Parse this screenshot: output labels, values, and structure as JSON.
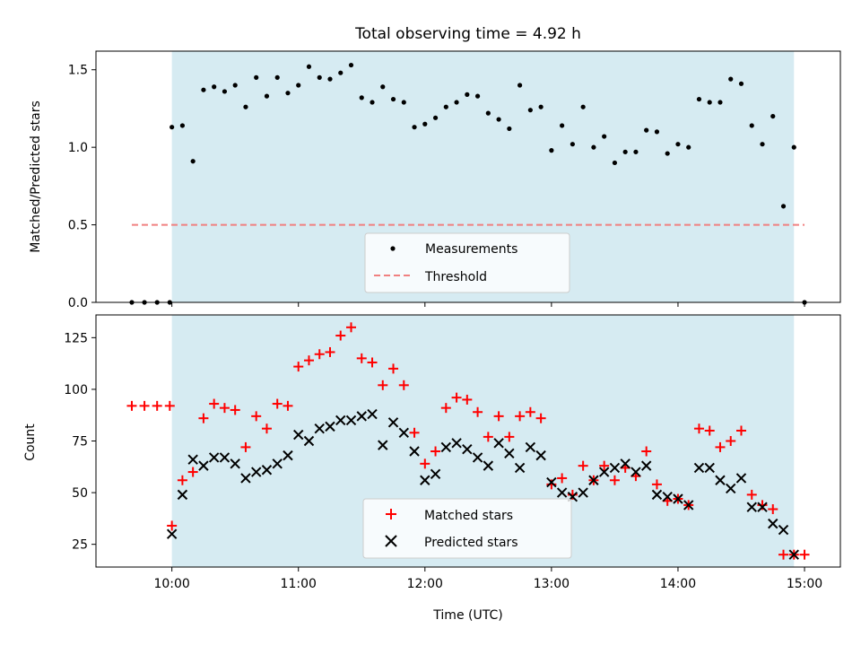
{
  "chart_data": [
    {
      "type": "scatter",
      "title": "Total observing time = 4.92 h",
      "xlabel": "",
      "ylabel": "Matched/Predicted stars",
      "xlim": [
        "09:24",
        "15:17"
      ],
      "ylim": [
        0,
        1.62
      ],
      "yticks": [
        0.0,
        0.5,
        1.0,
        1.5
      ],
      "ytick_labels": [
        "0.0",
        "0.5",
        "1.0",
        "1.5"
      ],
      "shaded_span": {
        "start": "10:00",
        "end": "14:55",
        "color": "#add8e6"
      },
      "legend": {
        "placement": "lower center",
        "entries": [
          "Measurements",
          "Threshold"
        ]
      },
      "series": [
        {
          "name": "Measurements",
          "marker": "dot",
          "color": "#000000",
          "x": [
            "09:41",
            "09:47",
            "09:53",
            "09:59",
            "10:00",
            "10:05",
            "10:10",
            "10:15",
            "10:20",
            "10:25",
            "10:30",
            "10:35",
            "10:40",
            "10:45",
            "10:50",
            "10:55",
            "11:00",
            "11:05",
            "11:10",
            "11:15",
            "11:20",
            "11:25",
            "11:30",
            "11:35",
            "11:40",
            "11:45",
            "11:50",
            "11:55",
            "12:00",
            "12:05",
            "12:10",
            "12:15",
            "12:20",
            "12:25",
            "12:30",
            "12:35",
            "12:40",
            "12:45",
            "12:50",
            "12:55",
            "13:00",
            "13:05",
            "13:10",
            "13:15",
            "13:20",
            "13:25",
            "13:30",
            "13:35",
            "13:40",
            "13:45",
            "13:50",
            "13:55",
            "14:00",
            "14:05",
            "14:10",
            "14:15",
            "14:20",
            "14:25",
            "14:30",
            "14:35",
            "14:40",
            "14:45",
            "14:50",
            "14:55",
            "15:00"
          ],
          "y": [
            0.0,
            0.0,
            0.0,
            0.0,
            1.13,
            1.14,
            0.91,
            1.37,
            1.39,
            1.36,
            1.4,
            1.26,
            1.45,
            1.33,
            1.45,
            1.35,
            1.4,
            1.52,
            1.45,
            1.44,
            1.48,
            1.53,
            1.32,
            1.29,
            1.39,
            1.31,
            1.29,
            1.13,
            1.15,
            1.19,
            1.26,
            1.29,
            1.34,
            1.33,
            1.22,
            1.18,
            1.12,
            1.4,
            1.24,
            1.26,
            0.98,
            1.14,
            1.02,
            1.26,
            1.0,
            1.07,
            0.9,
            0.97,
            0.97,
            1.11,
            1.1,
            0.96,
            1.02,
            1.0,
            1.31,
            1.29,
            1.29,
            1.44,
            1.41,
            1.14,
            1.02,
            1.2,
            0.62,
            1.0,
            0.0
          ]
        },
        {
          "name": "Threshold",
          "marker": "dashed-line",
          "color": "#f08080",
          "x": [
            "09:41",
            "15:00"
          ],
          "y": [
            0.5,
            0.5
          ]
        }
      ]
    },
    {
      "type": "scatter",
      "title": "",
      "xlabel": "Time (UTC)",
      "ylabel": "Count",
      "xlim": [
        "09:24",
        "15:17"
      ],
      "ylim": [
        14,
        136
      ],
      "xticks": [
        "10:00",
        "11:00",
        "12:00",
        "13:00",
        "14:00",
        "15:00"
      ],
      "xtick_labels": [
        "10:00",
        "11:00",
        "12:00",
        "13:00",
        "14:00",
        "15:00"
      ],
      "yticks": [
        25,
        50,
        75,
        100,
        125
      ],
      "ytick_labels": [
        "25",
        "50",
        "75",
        "100",
        "125"
      ],
      "shaded_span": {
        "start": "10:00",
        "end": "14:55",
        "color": "#add8e6"
      },
      "legend": {
        "placement": "lower center",
        "entries": [
          "Matched stars",
          "Predicted stars"
        ]
      },
      "series": [
        {
          "name": "Matched stars",
          "marker": "plus",
          "color": "#ff0000",
          "x": [
            "09:41",
            "09:47",
            "09:53",
            "09:59",
            "10:00",
            "10:05",
            "10:10",
            "10:15",
            "10:20",
            "10:25",
            "10:30",
            "10:35",
            "10:40",
            "10:45",
            "10:50",
            "10:55",
            "11:00",
            "11:05",
            "11:10",
            "11:15",
            "11:20",
            "11:25",
            "11:30",
            "11:35",
            "11:40",
            "11:45",
            "11:50",
            "11:55",
            "12:00",
            "12:05",
            "12:10",
            "12:15",
            "12:20",
            "12:25",
            "12:30",
            "12:35",
            "12:40",
            "12:45",
            "12:50",
            "12:55",
            "13:00",
            "13:05",
            "13:10",
            "13:15",
            "13:20",
            "13:25",
            "13:30",
            "13:35",
            "13:40",
            "13:45",
            "13:50",
            "13:55",
            "14:00",
            "14:05",
            "14:10",
            "14:15",
            "14:20",
            "14:25",
            "14:30",
            "14:35",
            "14:40",
            "14:45",
            "14:50",
            "14:55",
            "15:00"
          ],
          "y": [
            92,
            92,
            92,
            92,
            34,
            56,
            60,
            86,
            93,
            91,
            90,
            72,
            87,
            81,
            93,
            92,
            111,
            114,
            117,
            118,
            126,
            130,
            115,
            113,
            102,
            110,
            102,
            79,
            64,
            70,
            91,
            96,
            95,
            89,
            77,
            87,
            77,
            87,
            89,
            86,
            54,
            57,
            49,
            63,
            56,
            63,
            56,
            62,
            58,
            70,
            54,
            46,
            47,
            44,
            81,
            80,
            72,
            75,
            80,
            49,
            44,
            42,
            20,
            20,
            20
          ]
        },
        {
          "name": "Predicted stars",
          "marker": "x",
          "color": "#000000",
          "x": [
            "10:00",
            "10:05",
            "10:10",
            "10:15",
            "10:20",
            "10:25",
            "10:30",
            "10:35",
            "10:40",
            "10:45",
            "10:50",
            "10:55",
            "11:00",
            "11:05",
            "11:10",
            "11:15",
            "11:20",
            "11:25",
            "11:30",
            "11:35",
            "11:40",
            "11:45",
            "11:50",
            "11:55",
            "12:00",
            "12:05",
            "12:10",
            "12:15",
            "12:20",
            "12:25",
            "12:30",
            "12:35",
            "12:40",
            "12:45",
            "12:50",
            "12:55",
            "13:00",
            "13:05",
            "13:10",
            "13:15",
            "13:20",
            "13:25",
            "13:30",
            "13:35",
            "13:40",
            "13:45",
            "13:50",
            "13:55",
            "14:00",
            "14:05",
            "14:10",
            "14:15",
            "14:20",
            "14:25",
            "14:30",
            "14:35",
            "14:40",
            "14:45",
            "14:50",
            "14:55"
          ],
          "y": [
            30,
            49,
            66,
            63,
            67,
            67,
            64,
            57,
            60,
            61,
            64,
            68,
            78,
            75,
            81,
            82,
            85,
            85,
            87,
            88,
            73,
            84,
            79,
            70,
            56,
            59,
            72,
            74,
            71,
            67,
            63,
            74,
            69,
            62,
            72,
            68,
            55,
            50,
            48,
            50,
            56,
            60,
            62,
            64,
            60,
            63,
            49,
            48,
            47,
            44,
            62,
            62,
            56,
            52,
            57,
            43,
            43,
            35,
            32,
            20
          ]
        }
      ]
    }
  ]
}
